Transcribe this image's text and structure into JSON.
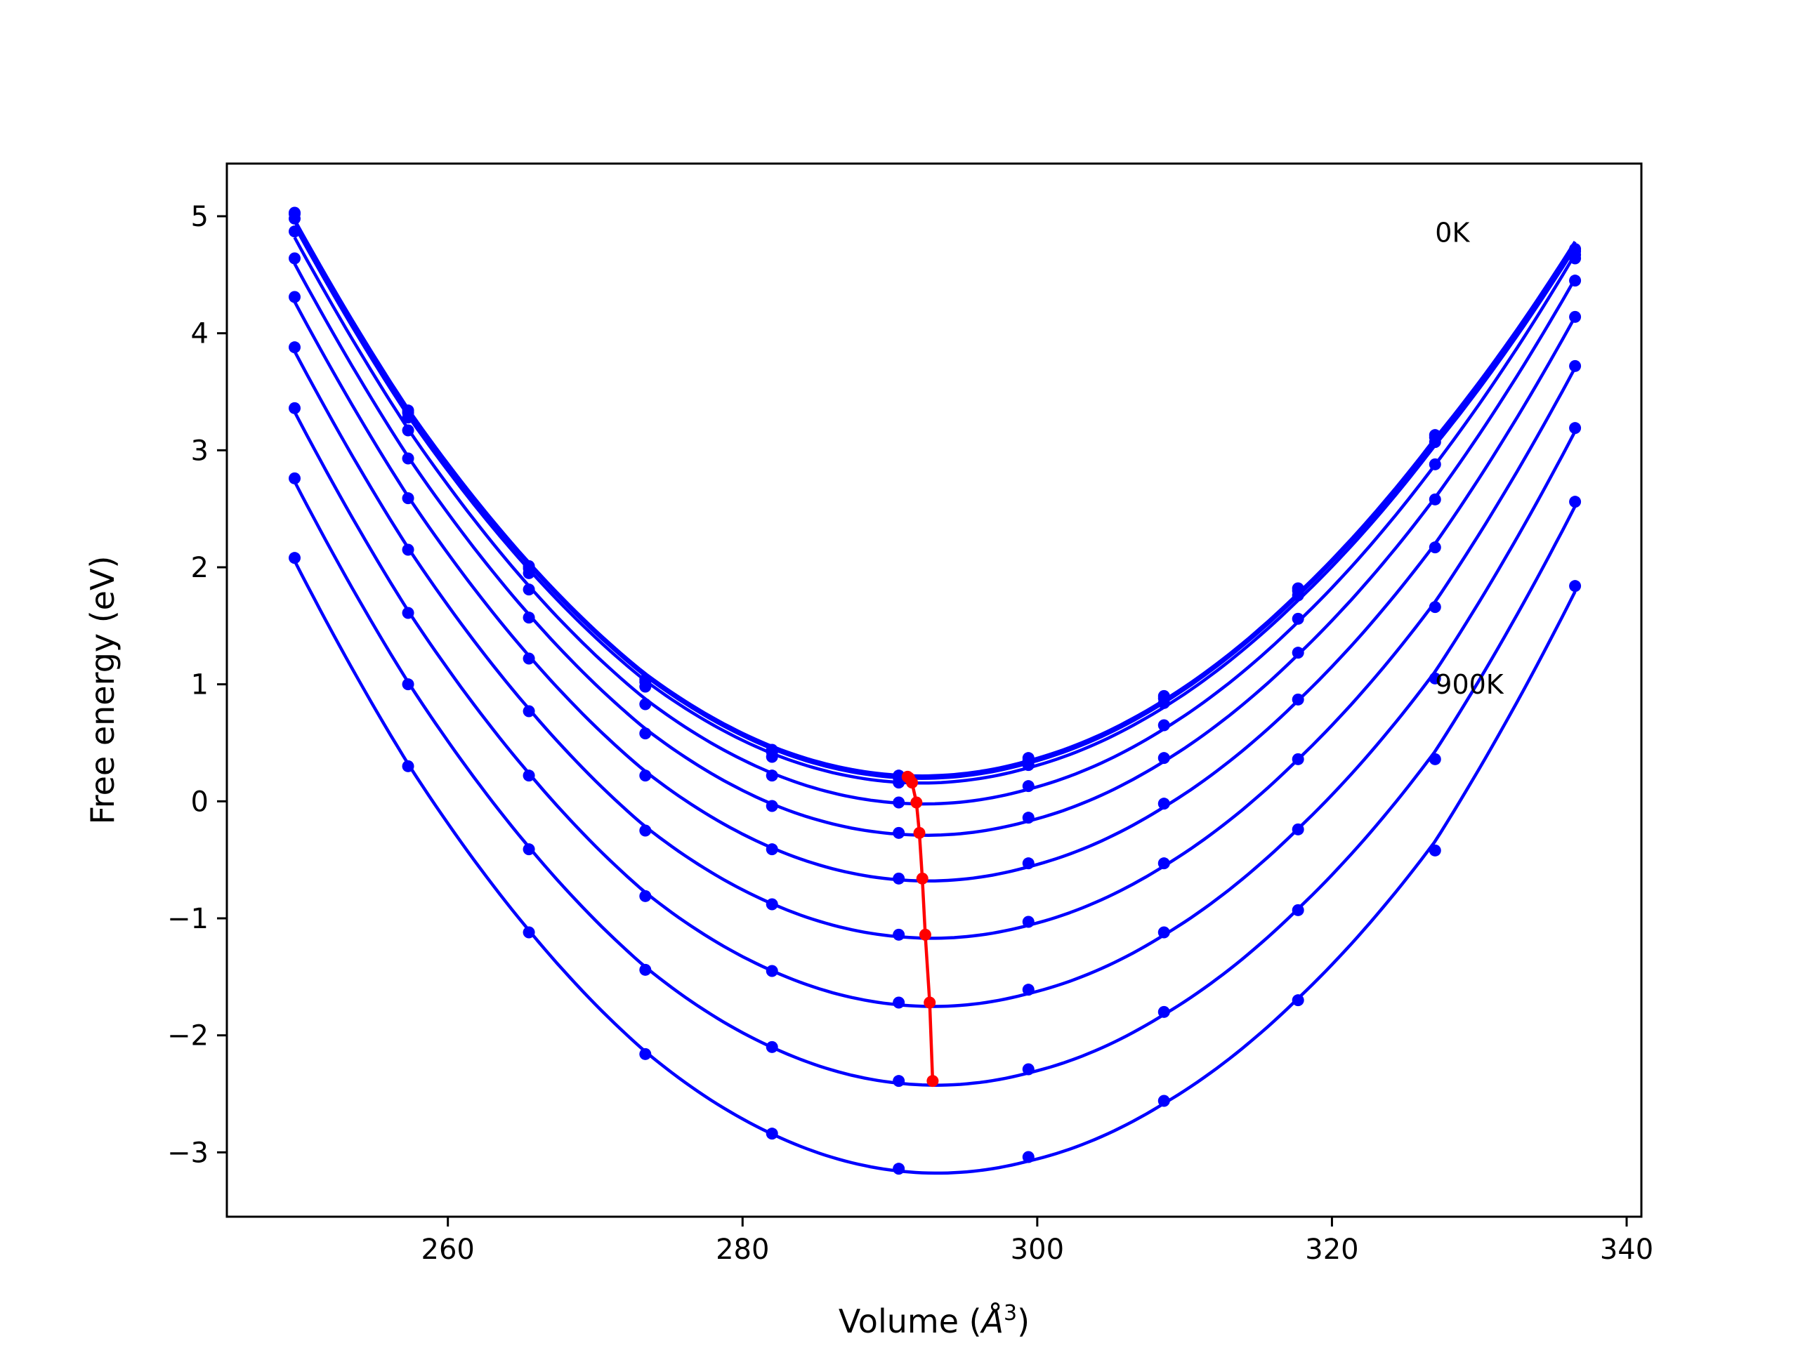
{
  "chart_data": {
    "type": "line",
    "title": "",
    "xlabel": "Volume (",
    "xlabel_math": "Å",
    "xlabel_sup": "3",
    "xlabel_close": ")",
    "ylabel": "Free energy (eV)",
    "xlim": [
      245,
      341
    ],
    "ylim": [
      -3.55,
      5.45
    ],
    "xticks": [
      260,
      280,
      300,
      320,
      340
    ],
    "yticks": [
      -3,
      -2,
      -1,
      0,
      1,
      2,
      3,
      4,
      5
    ],
    "xtick_labels": [
      "260",
      "280",
      "300",
      "320",
      "340"
    ],
    "ytick_labels": [
      "−3",
      "−2",
      "−1",
      "0",
      "1",
      "2",
      "3",
      "4",
      "5"
    ],
    "grid": false,
    "annotations": [
      {
        "text": "0K",
        "x": 327.0,
        "y": 4.78
      },
      {
        "text": "900K",
        "x": 327.0,
        "y": 0.92
      }
    ],
    "x": [
      249.6,
      257.3,
      265.5,
      273.4,
      282.0,
      290.6,
      299.4,
      308.6,
      317.7,
      327.0,
      336.5
    ],
    "series": [
      {
        "values": [
          5.03,
          3.34,
          2.01,
          1.04,
          0.44,
          0.22,
          0.37,
          0.9,
          1.82,
          3.13,
          4.72
        ]
      },
      {
        "values": [
          5.02,
          3.32,
          1.99,
          1.02,
          0.42,
          0.2,
          0.35,
          0.88,
          1.8,
          3.11,
          4.7
        ]
      },
      {
        "values": [
          4.98,
          3.28,
          1.95,
          0.98,
          0.38,
          0.16,
          0.31,
          0.84,
          1.76,
          3.07,
          4.67
        ]
      },
      {
        "values": [
          4.87,
          3.17,
          1.81,
          0.83,
          0.22,
          -0.01,
          0.13,
          0.65,
          1.56,
          2.88,
          4.64
        ]
      },
      {
        "values": [
          4.64,
          2.93,
          1.57,
          0.58,
          -0.04,
          -0.27,
          -0.14,
          0.37,
          1.27,
          2.58,
          4.45
        ]
      },
      {
        "values": [
          4.31,
          2.59,
          1.22,
          0.22,
          -0.41,
          -0.66,
          -0.53,
          -0.02,
          0.87,
          2.17,
          4.14
        ]
      },
      {
        "values": [
          3.88,
          2.15,
          0.77,
          -0.25,
          -0.88,
          -1.14,
          -1.03,
          -0.53,
          0.36,
          1.66,
          3.72
        ]
      },
      {
        "values": [
          3.36,
          1.61,
          0.22,
          -0.81,
          -1.45,
          -1.72,
          -1.61,
          -1.12,
          -0.24,
          1.05,
          3.19
        ]
      },
      {
        "values": [
          2.76,
          1.0,
          -0.41,
          -1.44,
          -2.1,
          -2.39,
          -2.29,
          -1.8,
          -0.93,
          0.36,
          2.56
        ]
      },
      {
        "values": [
          2.08,
          0.3,
          -1.12,
          -2.16,
          -2.84,
          -3.14,
          -3.04,
          -2.56,
          -1.7,
          -0.42,
          1.84
        ]
      }
    ],
    "minimum_series": {
      "x": [
        291.3,
        291.4,
        291.6,
        291.8,
        292.0,
        292.3,
        292.6,
        292.9,
        293.2
      ],
      "y": [
        0.22,
        0.2,
        0.15,
        -0.01,
        -0.27,
        -0.66,
        -1.14,
        -1.72,
        -2.39
      ],
      "note": ""
    },
    "minima": {
      "x": [
        291.2,
        291.3,
        291.5,
        291.8,
        292.0,
        292.2,
        292.4,
        292.7,
        292.9
      ],
      "y": [
        0.21,
        0.2,
        0.16,
        -0.01,
        -0.27,
        -0.66,
        -1.14,
        -1.72,
        -2.39
      ]
    },
    "colors": {
      "curves": "#0000ff",
      "minima": "#ff0000",
      "axes": "#000000"
    }
  }
}
